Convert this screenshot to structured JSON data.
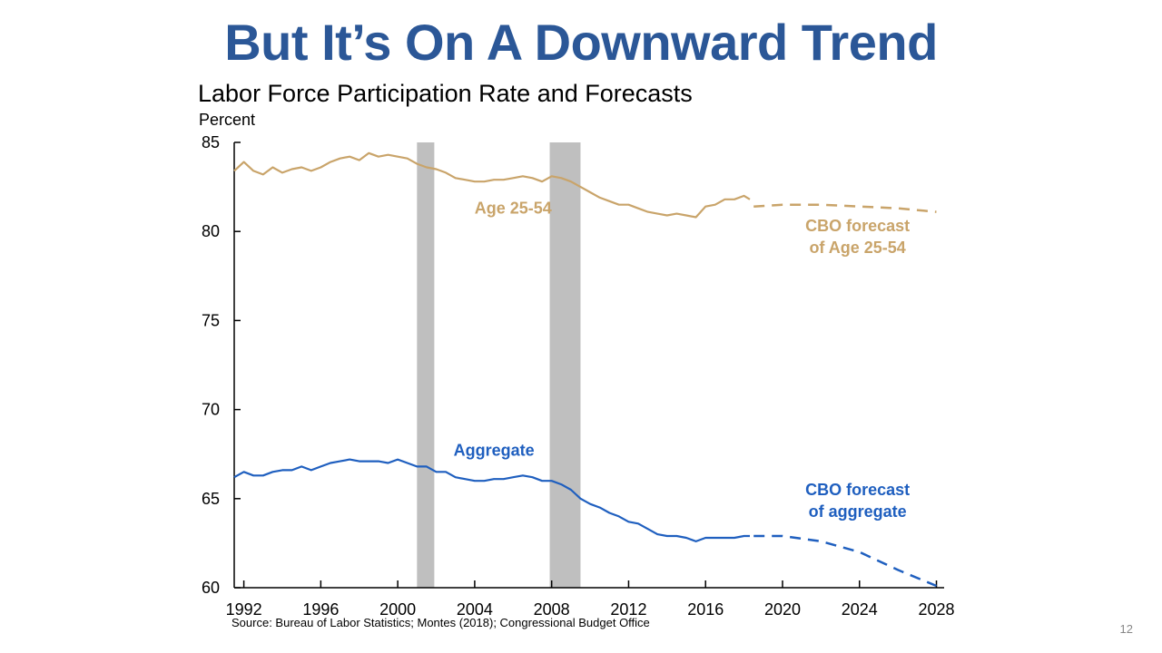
{
  "slide": {
    "title": "But It’s On A Downward Trend",
    "page_number": "12",
    "source": "Source: Bureau of Labor Statistics; Montes (2018); Congressional Budget Office"
  },
  "colors": {
    "title": "#2b5797",
    "age_series": "#c9a46a",
    "aggregate_series": "#1f5fbf",
    "recession": "#bfbfbf"
  },
  "chart_data": {
    "type": "line",
    "title": "Labor Force Participation Rate and Forecasts",
    "ylabel": "Percent",
    "xlim": [
      1991.5,
      2028.4
    ],
    "ylim": [
      60,
      85
    ],
    "x_ticks": [
      1992,
      1996,
      2000,
      2004,
      2008,
      2012,
      2016,
      2020,
      2024,
      2028
    ],
    "y_ticks": [
      60,
      65,
      70,
      75,
      80,
      85
    ],
    "recessions": [
      [
        2001.0,
        2001.9
      ],
      [
        2007.9,
        2009.5
      ]
    ],
    "series": [
      {
        "name": "Age 25-54",
        "style": "solid",
        "x": [
          1991.5,
          1992.0,
          1992.5,
          1993.0,
          1993.5,
          1994.0,
          1994.5,
          1995.0,
          1995.5,
          1996.0,
          1996.5,
          1997.0,
          1997.5,
          1998.0,
          1998.5,
          1999.0,
          1999.5,
          2000.0,
          2000.5,
          2001.0,
          2001.5,
          2002.0,
          2002.5,
          2003.0,
          2003.5,
          2004.0,
          2004.5,
          2005.0,
          2005.5,
          2006.0,
          2006.5,
          2007.0,
          2007.5,
          2008.0,
          2008.5,
          2009.0,
          2009.5,
          2010.0,
          2010.5,
          2011.0,
          2011.5,
          2012.0,
          2012.5,
          2013.0,
          2013.5,
          2014.0,
          2014.5,
          2015.0,
          2015.5,
          2016.0,
          2016.5,
          2017.0,
          2017.5,
          2018.0,
          2018.3
        ],
        "y": [
          83.4,
          83.9,
          83.4,
          83.2,
          83.6,
          83.3,
          83.5,
          83.6,
          83.4,
          83.6,
          83.9,
          84.1,
          84.2,
          84.0,
          84.4,
          84.2,
          84.3,
          84.2,
          84.1,
          83.8,
          83.6,
          83.5,
          83.3,
          83.0,
          82.9,
          82.8,
          82.8,
          82.9,
          82.9,
          83.0,
          83.1,
          83.0,
          82.8,
          83.1,
          83.0,
          82.8,
          82.5,
          82.2,
          81.9,
          81.7,
          81.5,
          81.5,
          81.3,
          81.1,
          81.0,
          80.9,
          81.0,
          80.9,
          80.8,
          81.4,
          81.5,
          81.8,
          81.8,
          82.0,
          81.8
        ]
      },
      {
        "name": "CBO forecast of Age 25-54",
        "style": "dashed",
        "x": [
          2018.5,
          2020,
          2022,
          2024,
          2026,
          2028
        ],
        "y": [
          81.4,
          81.5,
          81.5,
          81.4,
          81.3,
          81.1
        ]
      },
      {
        "name": "Aggregate",
        "style": "solid",
        "x": [
          1991.5,
          1992.0,
          1992.5,
          1993.0,
          1993.5,
          1994.0,
          1994.5,
          1995.0,
          1995.5,
          1996.0,
          1996.5,
          1997.0,
          1997.5,
          1998.0,
          1998.5,
          1999.0,
          1999.5,
          2000.0,
          2000.5,
          2001.0,
          2001.5,
          2002.0,
          2002.5,
          2003.0,
          2003.5,
          2004.0,
          2004.5,
          2005.0,
          2005.5,
          2006.0,
          2006.5,
          2007.0,
          2007.5,
          2008.0,
          2008.5,
          2009.0,
          2009.5,
          2010.0,
          2010.5,
          2011.0,
          2011.5,
          2012.0,
          2012.5,
          2013.0,
          2013.5,
          2014.0,
          2014.5,
          2015.0,
          2015.5,
          2016.0,
          2016.5,
          2017.0,
          2017.5,
          2018.0,
          2018.3
        ],
        "y": [
          66.2,
          66.5,
          66.3,
          66.3,
          66.5,
          66.6,
          66.6,
          66.8,
          66.6,
          66.8,
          67.0,
          67.1,
          67.2,
          67.1,
          67.1,
          67.1,
          67.0,
          67.2,
          67.0,
          66.8,
          66.8,
          66.5,
          66.5,
          66.2,
          66.1,
          66.0,
          66.0,
          66.1,
          66.1,
          66.2,
          66.3,
          66.2,
          66.0,
          66.0,
          65.8,
          65.5,
          65.0,
          64.7,
          64.5,
          64.2,
          64.0,
          63.7,
          63.6,
          63.3,
          63.0,
          62.9,
          62.9,
          62.8,
          62.6,
          62.8,
          62.8,
          62.8,
          62.8,
          62.9,
          62.9
        ]
      },
      {
        "name": "CBO forecast of aggregate",
        "style": "dashed",
        "x": [
          2018.5,
          2020,
          2022,
          2024,
          2026,
          2028
        ],
        "y": [
          62.9,
          62.9,
          62.6,
          62.0,
          61.0,
          60.1
        ]
      }
    ],
    "annotations": [
      {
        "key": "age",
        "text": "Age 25-54",
        "x": 2006.0,
        "y": 81.0,
        "lines": [
          "Age 25-54"
        ]
      },
      {
        "key": "age_forecast",
        "x": 2023.9,
        "y": 80.0,
        "lines": [
          "CBO forecast",
          "of Age 25-54"
        ]
      },
      {
        "key": "agg",
        "text": "Aggregate",
        "x": 2005.0,
        "y": 67.4,
        "lines": [
          "Aggregate"
        ]
      },
      {
        "key": "agg_forecast",
        "x": 2023.9,
        "y": 65.2,
        "lines": [
          "CBO forecast",
          "of aggregate"
        ]
      }
    ]
  }
}
